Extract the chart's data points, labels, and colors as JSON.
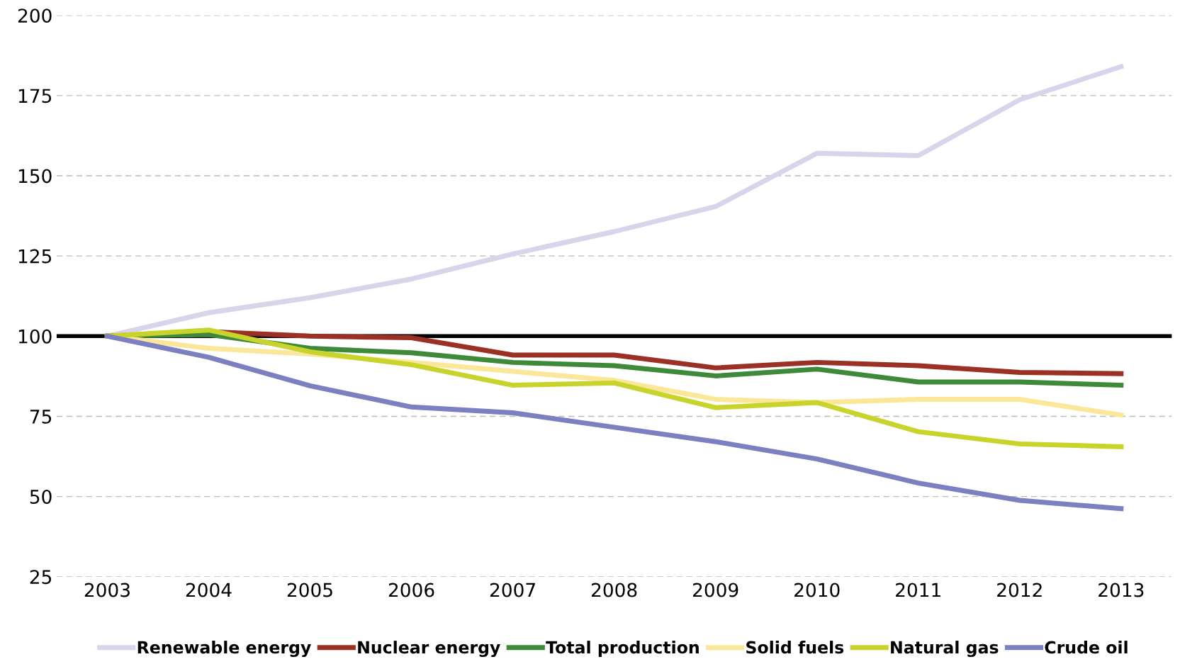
{
  "chart_data": {
    "type": "line",
    "categories": [
      "2003",
      "2004",
      "2005",
      "2006",
      "2007",
      "2008",
      "2009",
      "2010",
      "2011",
      "2012",
      "2013"
    ],
    "series": [
      {
        "name": "Renewable energy",
        "color": "#d9d4ea",
        "values": [
          100,
          107.3,
          112,
          117.8,
          125.6,
          132.6,
          140.4,
          157,
          156.3,
          173.7,
          184
        ]
      },
      {
        "name": "Nuclear energy",
        "color": "#9b3024",
        "values": [
          100,
          101.4,
          100,
          99.5,
          94.1,
          94.1,
          90.1,
          91.8,
          90.8,
          88.7,
          88.3
        ]
      },
      {
        "name": "Total production",
        "color": "#3f8a3a",
        "values": [
          100,
          100.5,
          96.2,
          94.8,
          91.8,
          90.8,
          87.6,
          89.7,
          85.7,
          85.7,
          84.7
        ]
      },
      {
        "name": "Solid fuels",
        "color": "#fbe79a",
        "values": [
          100,
          96.2,
          94.4,
          91.8,
          89,
          86.2,
          80.3,
          79.3,
          80.3,
          80.3,
          75.4
        ]
      },
      {
        "name": "Natural gas",
        "color": "#c8d42b",
        "values": [
          100,
          101.9,
          95.1,
          91.1,
          84.7,
          85.4,
          77.7,
          79.3,
          70.2,
          66.4,
          65.5
        ]
      },
      {
        "name": "Crude oil",
        "color": "#7c7fc0",
        "values": [
          100,
          93.4,
          84.5,
          77.9,
          76.1,
          71.6,
          67.1,
          61.7,
          54.2,
          48.8,
          46.2
        ]
      }
    ],
    "ylim": [
      25,
      200
    ],
    "yticks": [
      25,
      50,
      75,
      100,
      125,
      150,
      175,
      200
    ],
    "ref_lines": [
      {
        "axis": "y",
        "value": 100,
        "color": "#000000"
      }
    ],
    "grid": "y",
    "legend": "bottom",
    "marker": "none",
    "line_style": "solid"
  }
}
